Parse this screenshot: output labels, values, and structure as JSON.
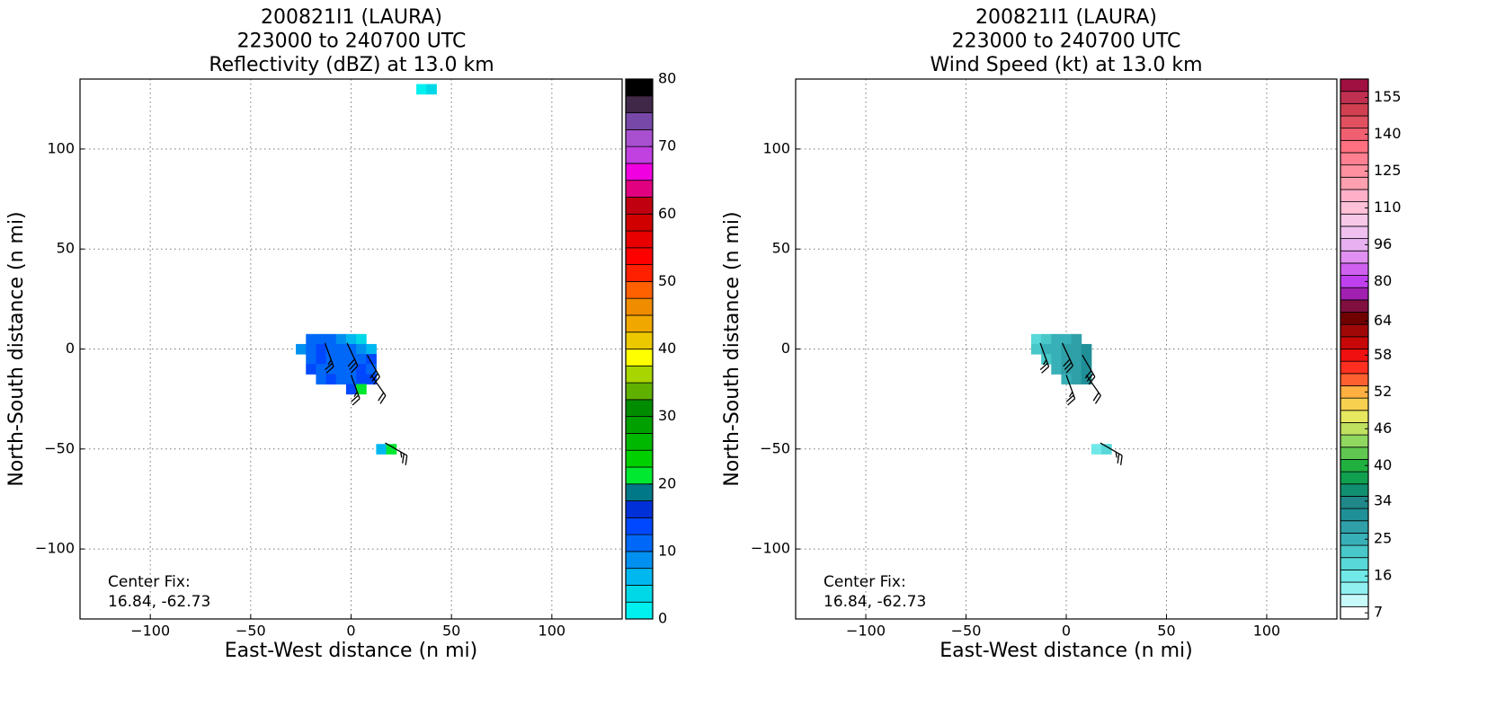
{
  "chart_data": [
    {
      "type": "heatmap",
      "title": [
        "200821I1 (LAURA)",
        "223000 to 240700 UTC",
        "Reflectivity (dBZ) at 13.0 km"
      ],
      "xlabel": "East-West distance (n mi)",
      "ylabel": "North-South distance (n mi)",
      "annotation": [
        "Center Fix:",
        "16.84, -62.73"
      ],
      "xlim": [
        -135,
        135
      ],
      "ylim": [
        -135,
        135
      ],
      "xticks": [
        {
          "value": -100,
          "label": "−100"
        },
        {
          "value": -50,
          "label": "−50"
        },
        0,
        50,
        100
      ],
      "yticks": [
        {
          "value": -100,
          "label": "−100"
        },
        {
          "value": -50,
          "label": "−50"
        },
        0,
        50,
        100
      ],
      "grid": true,
      "field": {
        "x": [
          -20,
          -15,
          -10,
          -5,
          0,
          5,
          -25,
          -20,
          -15,
          -10,
          -5,
          0,
          5,
          10,
          -20,
          -15,
          -10,
          -5,
          0,
          5,
          10,
          -20,
          -15,
          -10,
          -5,
          0,
          5,
          10,
          -15,
          -10,
          -5,
          0,
          5,
          10,
          0,
          5,
          15,
          20,
          35,
          40
        ],
        "y": [
          5,
          5,
          5,
          5,
          5,
          5,
          0,
          0,
          0,
          0,
          0,
          0,
          0,
          0,
          -5,
          -5,
          -5,
          -5,
          -5,
          -5,
          -5,
          -10,
          -10,
          -10,
          -10,
          -10,
          -10,
          -10,
          -15,
          -15,
          -15,
          -15,
          -15,
          -15,
          -20,
          -20,
          -50,
          -50,
          130,
          130
        ],
        "values": [
          10,
          12,
          12,
          8,
          5,
          3,
          8,
          12,
          13,
          11,
          12,
          10,
          8,
          5,
          12,
          13,
          12,
          10,
          12,
          11,
          13,
          13,
          12,
          11,
          10,
          12,
          13,
          12,
          12,
          13,
          10,
          12,
          13,
          14,
          13,
          22,
          7,
          21,
          2,
          3
        ]
      },
      "barbs": {
        "x": [
          -13,
          -2,
          8,
          0,
          10,
          17
        ],
        "y": [
          3,
          3,
          -3,
          -13,
          -13,
          -47
        ],
        "speed": [
          25,
          30,
          30,
          25,
          20,
          25
        ],
        "direction": [
          160,
          155,
          150,
          160,
          145,
          120
        ]
      },
      "colorbar": {
        "bounds": [
          0,
          2.5,
          5,
          7.5,
          10,
          12.5,
          15,
          17.5,
          20,
          22.5,
          25,
          27.5,
          30,
          32.5,
          35,
          37.5,
          40,
          42.5,
          45,
          47.5,
          50,
          52.5,
          55,
          57.5,
          60,
          62.5,
          65,
          67.5,
          70,
          72.5,
          75,
          77.5,
          80
        ],
        "colors": [
          "#00f0f0",
          "#00d8e8",
          "#00b8f0",
          "#0090f0",
          "#0068f8",
          "#0048ff",
          "#0030d8",
          "#007888",
          "#00e830",
          "#00d000",
          "#00b800",
          "#00a000",
          "#008c00",
          "#60b000",
          "#a8d400",
          "#ffff00",
          "#ecc800",
          "#f0a800",
          "#f08c00",
          "#ff6000",
          "#ff2000",
          "#ff0000",
          "#e80000",
          "#d00000",
          "#c00010",
          "#e00080",
          "#f000e0",
          "#c040e0",
          "#a850d0",
          "#7848a8",
          "#402848",
          "#000000"
        ],
        "ticks": [
          0,
          10,
          20,
          30,
          40,
          50,
          60,
          70,
          80
        ]
      }
    },
    {
      "type": "heatmap",
      "title": [
        "200821I1 (LAURA)",
        "223000 to 240700 UTC",
        "Wind Speed (kt) at 13.0 km"
      ],
      "xlabel": "East-West distance (n mi)",
      "ylabel": "North-South distance (n mi)",
      "annotation": [
        "Center Fix:",
        "16.84, -62.73"
      ],
      "xlim": [
        -135,
        135
      ],
      "ylim": [
        -135,
        135
      ],
      "xticks": [
        {
          "value": -100,
          "label": "−100"
        },
        {
          "value": -50,
          "label": "−50"
        },
        0,
        50,
        100
      ],
      "yticks": [
        {
          "value": -100,
          "label": "−100"
        },
        {
          "value": -50,
          "label": "−50"
        },
        0,
        50,
        100
      ],
      "grid": true,
      "field": {
        "x": [
          -15,
          -10,
          -5,
          0,
          5,
          -15,
          -10,
          -5,
          0,
          5,
          10,
          -10,
          -5,
          0,
          5,
          10,
          -5,
          0,
          5,
          10,
          0,
          5,
          10,
          15,
          20
        ],
        "y": [
          5,
          5,
          5,
          5,
          5,
          0,
          0,
          0,
          0,
          0,
          0,
          -5,
          -5,
          -5,
          -5,
          -5,
          -10,
          -10,
          -10,
          -10,
          -15,
          -15,
          -15,
          -50,
          -50
        ],
        "values": [
          20,
          22,
          24,
          26,
          28,
          22,
          24,
          25,
          27,
          28,
          30,
          23,
          25,
          28,
          29,
          30,
          24,
          27,
          29,
          30,
          26,
          28,
          30,
          17,
          20
        ]
      },
      "barbs": {
        "x": [
          -13,
          -2,
          8,
          0,
          10,
          17
        ],
        "y": [
          3,
          3,
          -3,
          -13,
          -13,
          -47
        ],
        "speed": [
          25,
          30,
          30,
          25,
          20,
          25
        ],
        "direction": [
          160,
          155,
          150,
          160,
          145,
          120
        ]
      },
      "colorbar": {
        "bounds": [
          5.5,
          8.5,
          11.5,
          14.5,
          17.5,
          20.5,
          23.5,
          26.5,
          29.5,
          32.5,
          35,
          37,
          39,
          41,
          43,
          45,
          47,
          49,
          51,
          53,
          55,
          57,
          59,
          61,
          63,
          66.5,
          72,
          77.5,
          82.5,
          88,
          93.5,
          98.5,
          103,
          107.5,
          112.5,
          117.5,
          122.5,
          127.5,
          132.5,
          137.5,
          142.5,
          147.5,
          152.5,
          157.5,
          162.5
        ],
        "colors": [
          "#ffffff",
          "#c8fafa",
          "#90f0f0",
          "#70e8e8",
          "#58d8d8",
          "#48c8c8",
          "#38b0b8",
          "#30a0a8",
          "#209098",
          "#208888",
          "#109070",
          "#10a050",
          "#20b040",
          "#60c850",
          "#90d860",
          "#c0e060",
          "#e8e860",
          "#f8d050",
          "#ffb040",
          "#ff6030",
          "#ff3020",
          "#f01010",
          "#c80808",
          "#a00808",
          "#700000",
          "#801040",
          "#a020b0",
          "#c040f0",
          "#d060f0",
          "#e090f0",
          "#e8b0f0",
          "#f0c0f0",
          "#f8c8e8",
          "#ffc0d8",
          "#ffb0c8",
          "#ffa0b0",
          "#ff90a0",
          "#ff8090",
          "#ff7080",
          "#f06070",
          "#e05060",
          "#d04050",
          "#c03050",
          "#a01040"
        ],
        "ticks": [
          7,
          16,
          25,
          34,
          40,
          46,
          52,
          58,
          64,
          80,
          96,
          110,
          125,
          140,
          155
        ]
      }
    }
  ]
}
